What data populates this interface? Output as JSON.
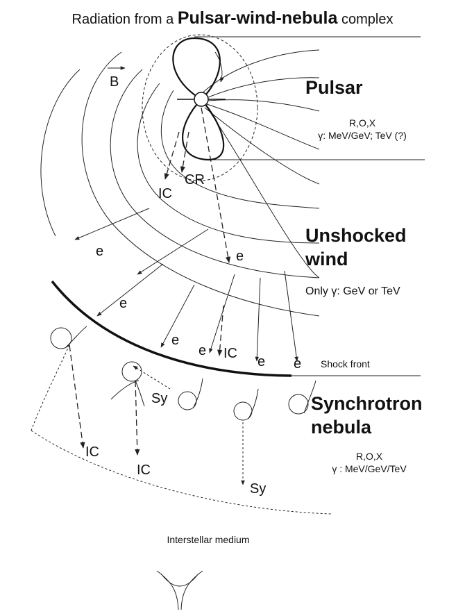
{
  "title": {
    "prefix": "Radiation from a",
    "emphasis": "Pulsar-wind-nebula",
    "suffix": "complex"
  },
  "field_label": "B",
  "pulsar": {
    "name": "Pulsar",
    "bands": "R,O,X",
    "gamma": "γ: MeV/GeV; TeV (?)"
  },
  "pulsar_processes": [
    "IC",
    "CR"
  ],
  "electron_labels": [
    "e",
    "e",
    "e",
    "e",
    "e",
    "e",
    "e"
  ],
  "unshocked_wind": {
    "name_line1": "Unshocked",
    "name_line2": "wind",
    "gamma": "Only γ: GeV or TeV"
  },
  "shock": {
    "process": "IC",
    "label": "Shock front"
  },
  "nebula": {
    "name_line1": "Synchrotron",
    "name_line2": "nebula",
    "bands": "R,O,X",
    "gamma": "γ : MeV/GeV/TeV",
    "processes": [
      "Sy",
      "IC",
      "IC",
      "Sy"
    ]
  },
  "medium": "Interstellar medium"
}
